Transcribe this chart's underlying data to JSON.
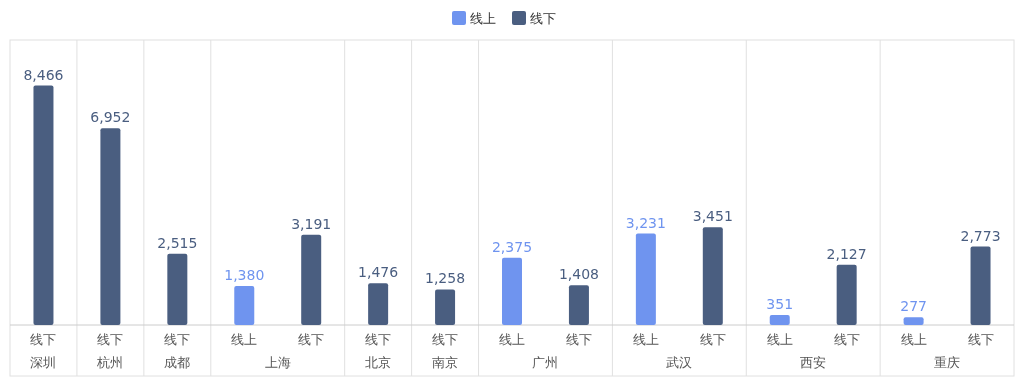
{
  "chart_data": {
    "type": "bar",
    "categories": [
      "线下",
      "线下",
      "线下",
      "线上",
      "线下",
      "线下",
      "线下",
      "线上",
      "线下",
      "线上",
      "线下",
      "线上",
      "线下",
      "线上",
      "线下"
    ],
    "series": [
      {
        "name": "线上",
        "color": "#6f94ef",
        "values": [
          null,
          null,
          null,
          1380,
          null,
          null,
          null,
          2375,
          null,
          3231,
          null,
          351,
          null,
          277,
          null
        ],
        "value_labels": [
          null,
          null,
          null,
          "1,380",
          null,
          null,
          null,
          "2,375",
          null,
          "3,231",
          null,
          "351",
          null,
          "277",
          null
        ]
      },
      {
        "name": "线下",
        "color": "#4a5e80",
        "values": [
          8466,
          6952,
          2515,
          null,
          3191,
          1476,
          1258,
          null,
          1408,
          null,
          3451,
          null,
          2127,
          null,
          2773
        ],
        "value_labels": [
          "8,466",
          "6,952",
          "2,515",
          null,
          "3,191",
          "1,476",
          "1,258",
          null,
          "1,408",
          null,
          "3,451",
          null,
          "2,127",
          null,
          "2,773"
        ]
      }
    ],
    "annotations": [
      "深圳",
      "杭州",
      "成都",
      "上海",
      "北京",
      "南京",
      "广州",
      "武汉",
      "西安",
      "重庆"
    ],
    "legend": "top"
  }
}
